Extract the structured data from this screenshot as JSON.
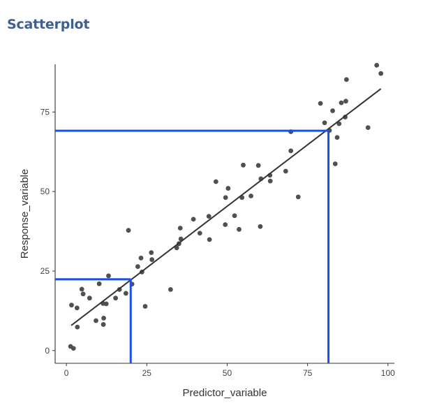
{
  "title": "Scatterplot",
  "chart_data": {
    "type": "scatter",
    "title": "Scatterplot",
    "xlabel": "Predictor_variable",
    "ylabel": "Response_variable",
    "xlim": [
      -3.5,
      102
    ],
    "ylim": [
      -4,
      90
    ],
    "xticks": [
      0,
      25,
      50,
      75,
      100
    ],
    "yticks": [
      0,
      25,
      50,
      75
    ],
    "grid": false,
    "point_color": "#505050",
    "points": [
      {
        "x": 1.3,
        "y": 1.3
      },
      {
        "x": 2.2,
        "y": 0.7
      },
      {
        "x": 1.6,
        "y": 14.3
      },
      {
        "x": 3.3,
        "y": 13.4
      },
      {
        "x": 3.4,
        "y": 7.4
      },
      {
        "x": 4.8,
        "y": 19.3
      },
      {
        "x": 5.2,
        "y": 17.8
      },
      {
        "x": 7.2,
        "y": 16.5
      },
      {
        "x": 9.2,
        "y": 9.4
      },
      {
        "x": 10.2,
        "y": 21.0
      },
      {
        "x": 11.4,
        "y": 14.8
      },
      {
        "x": 11.6,
        "y": 10.2
      },
      {
        "x": 11.5,
        "y": 8.2
      },
      {
        "x": 12.4,
        "y": 14.7
      },
      {
        "x": 13.1,
        "y": 23.5
      },
      {
        "x": 15.3,
        "y": 16.5
      },
      {
        "x": 16.5,
        "y": 19.2
      },
      {
        "x": 18.5,
        "y": 18.0
      },
      {
        "x": 19.3,
        "y": 37.8
      },
      {
        "x": 20.4,
        "y": 20.9
      },
      {
        "x": 22.2,
        "y": 26.4
      },
      {
        "x": 23.2,
        "y": 29.1
      },
      {
        "x": 23.5,
        "y": 24.7
      },
      {
        "x": 24.5,
        "y": 13.9
      },
      {
        "x": 26.4,
        "y": 30.8
      },
      {
        "x": 26.6,
        "y": 28.6
      },
      {
        "x": 32.4,
        "y": 19.2
      },
      {
        "x": 34.3,
        "y": 32.3
      },
      {
        "x": 35.0,
        "y": 33.6
      },
      {
        "x": 35.4,
        "y": 38.5
      },
      {
        "x": 35.6,
        "y": 35.1
      },
      {
        "x": 39.5,
        "y": 41.3
      },
      {
        "x": 41.5,
        "y": 36.9
      },
      {
        "x": 44.3,
        "y": 42.2
      },
      {
        "x": 44.5,
        "y": 34.9
      },
      {
        "x": 46.5,
        "y": 53.1
      },
      {
        "x": 49.4,
        "y": 39.6
      },
      {
        "x": 49.5,
        "y": 48.1
      },
      {
        "x": 50.3,
        "y": 51.0
      },
      {
        "x": 52.3,
        "y": 42.4
      },
      {
        "x": 53.7,
        "y": 38.1
      },
      {
        "x": 54.6,
        "y": 48.1
      },
      {
        "x": 55.0,
        "y": 58.3
      },
      {
        "x": 57.4,
        "y": 48.6
      },
      {
        "x": 59.7,
        "y": 58.2
      },
      {
        "x": 60.3,
        "y": 39.0
      },
      {
        "x": 60.5,
        "y": 54.0
      },
      {
        "x": 63.3,
        "y": 55.1
      },
      {
        "x": 63.4,
        "y": 53.3
      },
      {
        "x": 68.2,
        "y": 56.4
      },
      {
        "x": 69.8,
        "y": 62.8
      },
      {
        "x": 69.8,
        "y": 68.8
      },
      {
        "x": 72.1,
        "y": 48.3
      },
      {
        "x": 79.0,
        "y": 77.7
      },
      {
        "x": 80.3,
        "y": 71.6
      },
      {
        "x": 81.8,
        "y": 69.2
      },
      {
        "x": 82.8,
        "y": 75.4
      },
      {
        "x": 83.6,
        "y": 58.7
      },
      {
        "x": 84.2,
        "y": 67.0
      },
      {
        "x": 84.8,
        "y": 71.3
      },
      {
        "x": 85.5,
        "y": 77.9
      },
      {
        "x": 86.7,
        "y": 73.4
      },
      {
        "x": 86.9,
        "y": 78.4
      },
      {
        "x": 87.1,
        "y": 85.2
      },
      {
        "x": 93.8,
        "y": 70.1
      },
      {
        "x": 96.5,
        "y": 89.7
      },
      {
        "x": 97.8,
        "y": 87.1
      }
    ],
    "trend_line": {
      "x": [
        1.5,
        97.8
      ],
      "y": [
        7.9,
        82.3
      ],
      "color": "#333333"
    },
    "reference_lines": [
      {
        "x": 20,
        "y": 22.4,
        "color": "#1f4fe0"
      },
      {
        "x": 81.5,
        "y": 69.1,
        "color": "#1f4fe0"
      }
    ]
  }
}
